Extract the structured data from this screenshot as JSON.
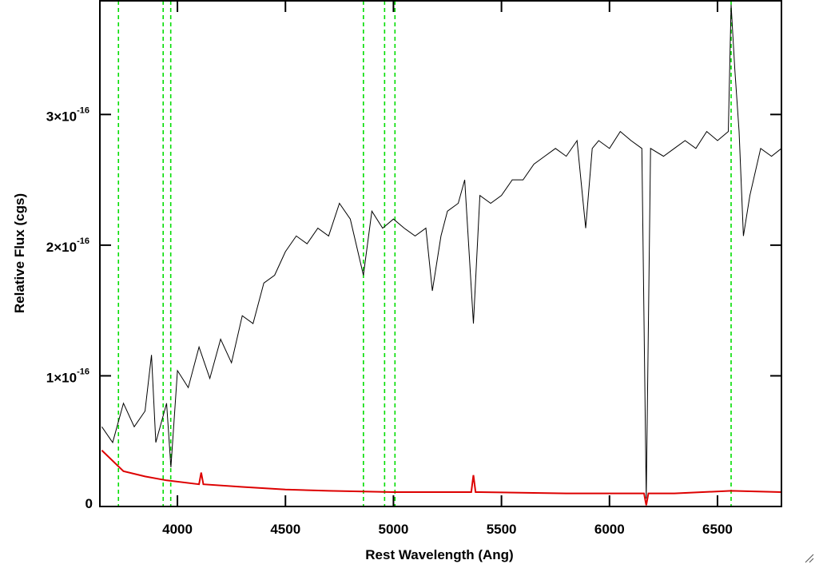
{
  "chart_data": {
    "type": "line",
    "x_label": "Rest Wavelength (Ang)",
    "y_label": "Relative Flux (cgs)",
    "xlim": [
      3641,
      6796
    ],
    "ylim": [
      0,
      3.87e-16
    ],
    "xticks": [
      4000,
      4500,
      5000,
      5500,
      6000,
      6500
    ],
    "yticks": [
      0,
      {
        "value": 1e-16,
        "label": "1×10",
        "exponent": "-16"
      },
      {
        "value": 2e-16,
        "label": "2×10",
        "exponent": "-16"
      },
      {
        "value": 3e-16,
        "label": "3×10",
        "exponent": "-16"
      }
    ],
    "line_markers": {
      "color": "#00dd00",
      "x": [
        3727,
        3934,
        3969,
        4861,
        4959,
        5007,
        6563
      ]
    },
    "series": [
      {
        "color": "#000000",
        "x": [
          3650,
          3700,
          3750,
          3800,
          3850,
          3880,
          3900,
          3950,
          3970,
          4000,
          4050,
          4100,
          4150,
          4200,
          4250,
          4300,
          4350,
          4400,
          4450,
          4500,
          4550,
          4600,
          4650,
          4700,
          4750,
          4800,
          4861,
          4900,
          4950,
          5000,
          5050,
          5100,
          5150,
          5180,
          5220,
          5250,
          5300,
          5330,
          5370,
          5400,
          5450,
          5500,
          5550,
          5600,
          5650,
          5700,
          5750,
          5800,
          5850,
          5890,
          5920,
          5950,
          6000,
          6050,
          6100,
          6150,
          6170,
          6190,
          6250,
          6300,
          6350,
          6400,
          6450,
          6500,
          6550,
          6563,
          6580,
          6600,
          6620,
          6650,
          6700,
          6750,
          6796
        ],
        "values": [
          6.1e-17,
          4.9e-17,
          7.9e-17,
          6.1e-17,
          7.3e-17,
          1.16e-16,
          4.9e-17,
          7.9e-17,
          3e-17,
          1.04e-16,
          9.1e-17,
          1.22e-16,
          9.8e-17,
          1.28e-16,
          1.1e-16,
          1.46e-16,
          1.4e-16,
          1.71e-16,
          1.77e-16,
          1.95e-16,
          2.07e-16,
          2.01e-16,
          2.13e-16,
          2.07e-16,
          2.32e-16,
          2.2e-16,
          1.77e-16,
          2.26e-16,
          2.13e-16,
          2.2e-16,
          2.13e-16,
          2.07e-16,
          2.13e-16,
          1.65e-16,
          2.07e-16,
          2.26e-16,
          2.32e-16,
          2.5e-16,
          1.4e-16,
          2.38e-16,
          2.32e-16,
          2.38e-16,
          2.5e-16,
          2.5e-16,
          2.62e-16,
          2.68e-16,
          2.74e-16,
          2.68e-16,
          2.8e-16,
          2.13e-16,
          2.74e-16,
          2.8e-16,
          2.74e-16,
          2.87e-16,
          2.8e-16,
          2.74e-16,
          6e-18,
          2.74e-16,
          2.68e-16,
          2.74e-16,
          2.8e-16,
          2.74e-16,
          2.87e-16,
          2.8e-16,
          2.87e-16,
          3.84e-16,
          3.35e-16,
          2.87e-16,
          2.07e-16,
          2.38e-16,
          2.74e-16,
          2.68e-16,
          2.74e-16
        ]
      },
      {
        "color": "#dd0000",
        "x": [
          3650,
          3750,
          3850,
          3950,
          4100,
          4110,
          4120,
          4300,
          4500,
          4700,
          5000,
          5360,
          5370,
          5380,
          5400,
          5800,
          6160,
          6170,
          6180,
          6300,
          6563,
          6796
        ],
        "values": [
          4.3e-17,
          2.7e-17,
          2.3e-17,
          2e-17,
          1.7e-17,
          2.6e-17,
          1.7e-17,
          1.5e-17,
          1.3e-17,
          1.2e-17,
          1.1e-17,
          1.1e-17,
          2.4e-17,
          1.1e-17,
          1.1e-17,
          1e-17,
          1e-17,
          1e-18,
          1e-17,
          1e-17,
          1.2e-17,
          1.1e-17
        ]
      }
    ]
  }
}
